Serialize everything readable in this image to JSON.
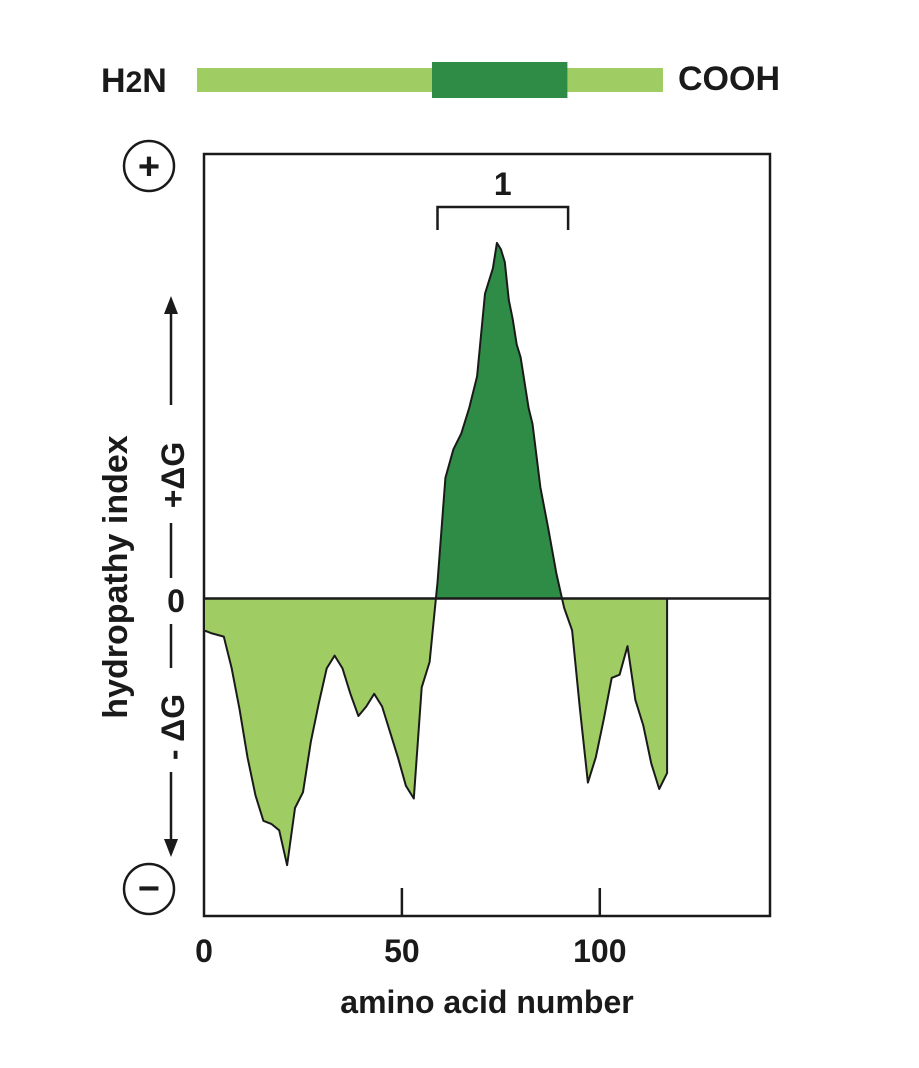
{
  "schematic": {
    "n_terminus": "H2N",
    "c_terminus": "COOH",
    "colors": {
      "light": "#9fcd64",
      "dark": "#2f8c46"
    },
    "segment_start_aa": 59,
    "segment_end_aa": 93,
    "protein_length_aa": 117
  },
  "chart_data": {
    "type": "area",
    "title": "",
    "xlabel": "amino acid number",
    "ylabel": "hydropathy index",
    "xlim": [
      0,
      143
    ],
    "ylim": [
      -100,
      140
    ],
    "x_ticks": [
      0,
      50,
      100
    ],
    "x_tick_labels": [
      "0",
      "50",
      "100"
    ],
    "y_ticks": [
      0
    ],
    "y_tick_labels": [
      "0"
    ],
    "y_top_symbol": "+",
    "y_bottom_symbol": "−",
    "y_positive_label": "+ΔG",
    "y_negative_label": "- ΔG",
    "grid": false,
    "legend": "none",
    "colors": {
      "negative": "#9fcd64",
      "positive": "#2f8c46",
      "bracket_label": "#2f8c46"
    },
    "annotations": [
      {
        "text": "1",
        "type": "bracket",
        "x_start": 59,
        "x_end": 92
      }
    ],
    "series": [
      {
        "x": [
          0,
          2,
          5,
          7,
          9,
          11,
          13,
          15,
          17,
          19,
          21,
          23,
          25,
          27,
          29,
          31,
          33,
          35,
          37,
          39,
          41,
          43,
          45,
          47,
          49,
          51,
          53,
          55,
          57,
          59,
          61,
          63,
          65,
          67,
          69,
          71,
          73,
          74,
          75,
          76,
          77,
          78,
          79,
          80,
          81,
          82,
          83,
          85,
          87,
          89,
          91,
          93,
          95,
          97,
          99,
          101,
          103,
          105,
          107,
          109,
          111,
          113,
          115,
          117
        ],
        "y": [
          -10,
          -11,
          -12,
          -22,
          -35,
          -50,
          -62,
          -70,
          -71,
          -73,
          -84,
          -66,
          -61,
          -45,
          -33,
          -22,
          -18,
          -22,
          -30,
          -37,
          -34,
          -30,
          -34,
          -42,
          -50,
          -59,
          -63,
          -28,
          -20,
          5,
          38,
          47,
          52,
          60,
          70,
          96,
          104,
          112,
          110,
          106,
          94,
          88,
          80,
          76,
          68,
          60,
          55,
          35,
          22,
          8,
          -3,
          -10,
          -35,
          -58,
          -50,
          -38,
          -25,
          -24,
          -15,
          -32,
          -40,
          -52,
          -60,
          -55
        ]
      }
    ]
  }
}
